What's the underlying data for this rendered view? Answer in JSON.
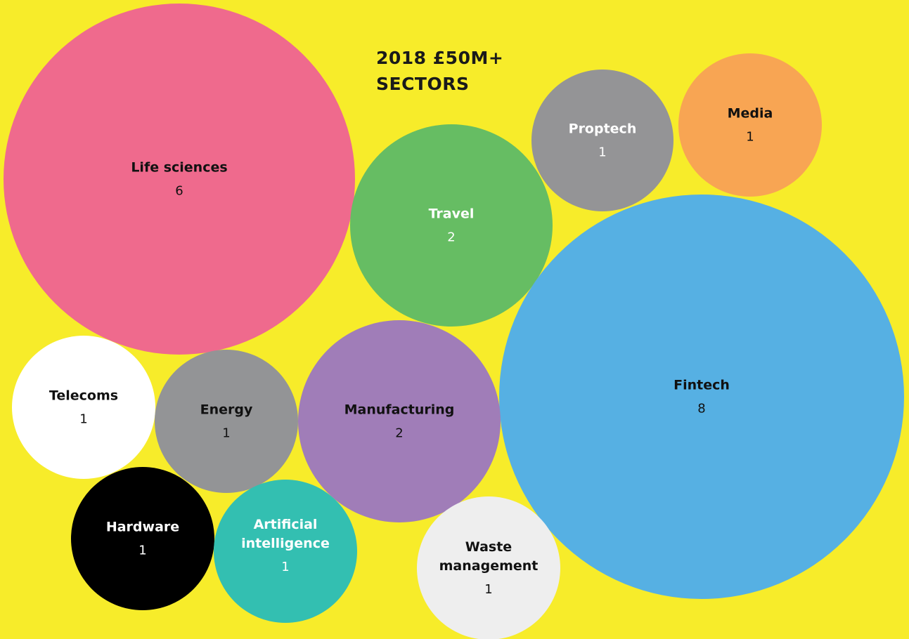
{
  "chart_data": {
    "type": "bubble",
    "title_lines": [
      "2018 £50M+",
      "SECTORS"
    ],
    "background": "#f7ec2a",
    "bubbles": [
      {
        "id": "life-sciences",
        "label_lines": [
          "Life sciences"
        ],
        "value": 6,
        "color": "#ef6a8d",
        "text_color": "#111111",
        "value_color": "#111111"
      },
      {
        "id": "travel",
        "label_lines": [
          "Travel"
        ],
        "value": 2,
        "color": "#66bd63",
        "text_color": "#ffffff",
        "value_color": "#ffffff"
      },
      {
        "id": "proptech",
        "label_lines": [
          "Proptech"
        ],
        "value": 1,
        "color": "#949496",
        "text_color": "#ffffff",
        "value_color": "#ffffff"
      },
      {
        "id": "media",
        "label_lines": [
          "Media"
        ],
        "value": 1,
        "color": "#f8a553",
        "text_color": "#111111",
        "value_color": "#111111"
      },
      {
        "id": "fintech",
        "label_lines": [
          "Fintech"
        ],
        "value": 8,
        "color": "#56b0e3",
        "text_color": "#111111",
        "value_color": "#111111"
      },
      {
        "id": "telecoms",
        "label_lines": [
          "Telecoms"
        ],
        "value": 1,
        "color": "#ffffff",
        "text_color": "#111111",
        "value_color": "#111111"
      },
      {
        "id": "energy",
        "label_lines": [
          "Energy"
        ],
        "value": 1,
        "color": "#939496",
        "text_color": "#111111",
        "value_color": "#111111"
      },
      {
        "id": "manufacturing",
        "label_lines": [
          "Manufacturing"
        ],
        "value": 2,
        "color": "#a07db8",
        "text_color": "#111111",
        "value_color": "#111111"
      },
      {
        "id": "hardware",
        "label_lines": [
          "Hardware"
        ],
        "value": 1,
        "color": "#000000",
        "text_color": "#ffffff",
        "value_color": "#ffffff"
      },
      {
        "id": "artificial-intelligence",
        "label_lines": [
          "Artificial",
          "intelligence"
        ],
        "value": 1,
        "color": "#33bfb1",
        "text_color": "#ffffff",
        "value_color": "#ffffff"
      },
      {
        "id": "waste-management",
        "label_lines": [
          "Waste",
          "management"
        ],
        "value": 1,
        "color": "#eeeeee",
        "text_color": "#111111",
        "value_color": "#111111"
      }
    ]
  }
}
